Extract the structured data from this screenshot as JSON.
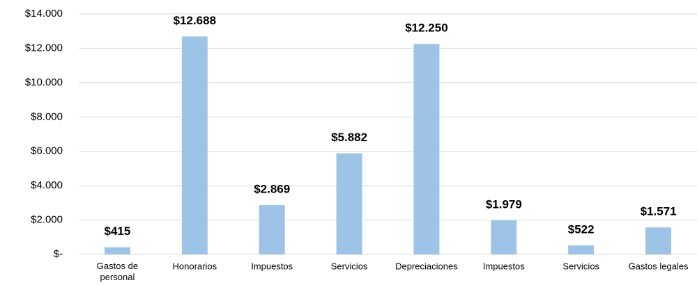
{
  "chart_data": {
    "type": "bar",
    "categories": [
      "Gastos de personal",
      "Honorarios",
      "Impuestos",
      "Servicios",
      "Depreciaciones",
      "Impuestos",
      "Servicios",
      "Gastos legales"
    ],
    "values": [
      415,
      12688,
      2869,
      5882,
      12250,
      1979,
      522,
      1571
    ],
    "value_labels": [
      "$415",
      "$12.688",
      "$2.869",
      "$5.882",
      "$12.250",
      "$1.979",
      "$522",
      "$1.571"
    ],
    "color": "#9dc3e6",
    "ylim": [
      0,
      14000
    ],
    "yticks": [
      {
        "value": 0,
        "label": "$-"
      },
      {
        "value": 2000,
        "label": "$2.000"
      },
      {
        "value": 4000,
        "label": "$4.000"
      },
      {
        "value": 6000,
        "label": "$6.000"
      },
      {
        "value": 8000,
        "label": "$8.000"
      },
      {
        "value": 10000,
        "label": "$10.000"
      },
      {
        "value": 12000,
        "label": "$12.000"
      },
      {
        "value": 14000,
        "label": "$14.000"
      }
    ],
    "grid": true
  }
}
